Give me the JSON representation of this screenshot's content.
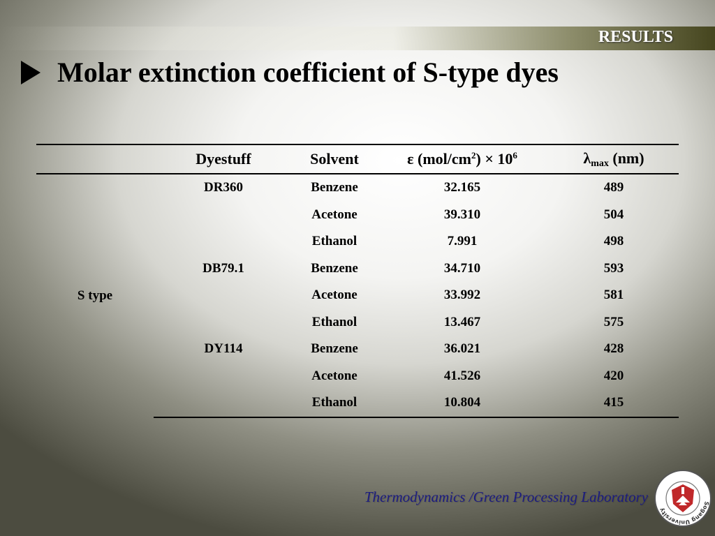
{
  "header": {
    "section_label": "RESULTS"
  },
  "slide": {
    "title": "Molar extinction coefficient of S-type dyes"
  },
  "table": {
    "headers": {
      "col0": "",
      "dyestuff": "Dyestuff",
      "solvent": "Solvent",
      "epsilon_main": "ε (mol/cm",
      "epsilon_sup1": "2",
      "epsilon_tail": ") × 10",
      "epsilon_sup2": "6",
      "lambda_main": "λ",
      "lambda_sub": "max",
      "lambda_tail": " (nm)"
    },
    "group_label": "S type",
    "rows": [
      {
        "dyestuff": "DR360",
        "solvent": "Benzene",
        "epsilon": "32.165",
        "lambda": "489"
      },
      {
        "dyestuff": "",
        "solvent": "Acetone",
        "epsilon": "39.310",
        "lambda": "504"
      },
      {
        "dyestuff": "",
        "solvent": "Ethanol",
        "epsilon": "7.991",
        "lambda": "498"
      },
      {
        "dyestuff": "DB79.1",
        "solvent": "Benzene",
        "epsilon": "34.710",
        "lambda": "593"
      },
      {
        "dyestuff": "",
        "solvent": "Acetone",
        "epsilon": "33.992",
        "lambda": "581"
      },
      {
        "dyestuff": "",
        "solvent": "Ethanol",
        "epsilon": "13.467",
        "lambda": "575"
      },
      {
        "dyestuff": "DY114",
        "solvent": "Benzene",
        "epsilon": "36.021",
        "lambda": "428"
      },
      {
        "dyestuff": "",
        "solvent": "Acetone",
        "epsilon": "41.526",
        "lambda": "420"
      },
      {
        "dyestuff": "",
        "solvent": "Ethanol",
        "epsilon": "10.804",
        "lambda": "415"
      }
    ]
  },
  "footer": {
    "lab_name": "Thermodynamics /Green Processing Laboratory",
    "seal": {
      "name": "sogang-university-seal",
      "text": "Sogang University"
    }
  },
  "colors": {
    "footer_text": "#1c1c80",
    "seal_red": "#c0282a"
  }
}
